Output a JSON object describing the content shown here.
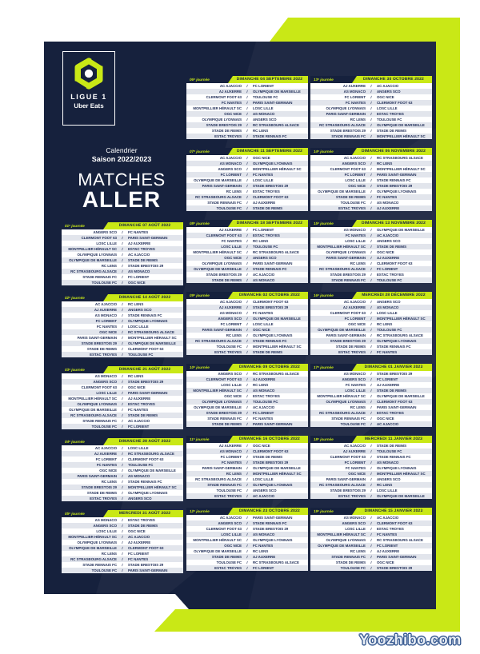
{
  "header": {
    "logo_league": "LIGUE 1",
    "logo_sponsor": "Uber Eats",
    "calendar_label": "Calendrier",
    "season_label": "Saison 2022/2023",
    "title_line1": "MATCHES",
    "title_line2": "ALLER"
  },
  "separator": "/",
  "footer": {
    "watermark": "Yoozhibo.com"
  },
  "colors": {
    "navy": "#16213d",
    "green": "#c9e816",
    "row_light": "#ffffff",
    "row_alt": "#e2e5ec",
    "row_text": "#1c2a55"
  },
  "journees": [
    {
      "label": "01ᵉ journée",
      "date": "DIMANCHE 07 AOÛT 2022",
      "col": 0,
      "matches": [
        [
          "ANGERS SCO",
          "FC NANTES"
        ],
        [
          "CLERMONT FOOT 63",
          "PARIS SAINT-GERMAIN"
        ],
        [
          "LOSC LILLE",
          "AJ AUXERRE"
        ],
        [
          "MONTPELLIER HÉRAULT SC",
          "ESTAC TROYES"
        ],
        [
          "OLYMPIQUE LYONNAIS",
          "AC AJACCIO"
        ],
        [
          "OLYMPIQUE DE MARSEILLE",
          "STADE DE REIMS"
        ],
        [
          "RC LENS",
          "STADE BRESTOIS 29"
        ],
        [
          "RC STRASBOURG ALSACE",
          "AS MONACO"
        ],
        [
          "STADE RENNAIS FC",
          "FC LORIENT"
        ],
        [
          "TOULOUSE FC",
          "OGC NICE"
        ]
      ]
    },
    {
      "label": "02ᵉ journée",
      "date": "DIMANCHE 14 AOÛT 2022",
      "col": 0,
      "matches": [
        [
          "AC AJACCIO",
          "RC LENS"
        ],
        [
          "AJ AUXERRE",
          "ANGERS SCO"
        ],
        [
          "AS MONACO",
          "STADE RENNAIS FC"
        ],
        [
          "FC LORIENT",
          "OLYMPIQUE LYONNAIS"
        ],
        [
          "FC NANTES",
          "LOSC LILLE"
        ],
        [
          "OGC NICE",
          "RC STRASBOURG ALSACE"
        ],
        [
          "PARIS SAINT-GERMAIN",
          "MONTPELLIER HÉRAULT SC"
        ],
        [
          "STADE BRESTOIS 29",
          "OLYMPIQUE DE MARSEILLE"
        ],
        [
          "STADE DE REIMS",
          "CLERMONT FOOT 63"
        ],
        [
          "ESTAC TROYES",
          "TOULOUSE FC"
        ]
      ]
    },
    {
      "label": "03ᵉ journée",
      "date": "DIMANCHE 21 AOÛT 2022",
      "col": 0,
      "matches": [
        [
          "AS MONACO",
          "RC LENS"
        ],
        [
          "ANGERS SCO",
          "STADE BRESTOIS 29"
        ],
        [
          "CLERMONT FOOT 63",
          "OGC NICE"
        ],
        [
          "LOSC LILLE",
          "PARIS SAINT-GERMAIN"
        ],
        [
          "MONTPELLIER HÉRAULT SC",
          "AJ AUXERRE"
        ],
        [
          "OLYMPIQUE LYONNAIS",
          "ESTAC TROYES"
        ],
        [
          "OLYMPIQUE DE MARSEILLE",
          "FC NANTES"
        ],
        [
          "RC STRASBOURG ALSACE",
          "STADE DE REIMS"
        ],
        [
          "STADE RENNAIS FC",
          "AC AJACCIO"
        ],
        [
          "TOULOUSE FC",
          "FC LORIENT"
        ]
      ]
    },
    {
      "label": "04ᵉ journée",
      "date": "DIMANCHE 28 AOÛT 2022",
      "col": 0,
      "matches": [
        [
          "AC AJACCIO",
          "LOSC LILLE"
        ],
        [
          "AJ AUXERRE",
          "RC STRASBOURG ALSACE"
        ],
        [
          "FC LORIENT",
          "CLERMONT FOOT 63"
        ],
        [
          "FC NANTES",
          "TOULOUSE FC"
        ],
        [
          "OGC NICE",
          "OLYMPIQUE DE MARSEILLE"
        ],
        [
          "PARIS SAINT-GERMAIN",
          "AS MONACO"
        ],
        [
          "RC LENS",
          "STADE RENNAIS FC"
        ],
        [
          "STADE BRESTOIS 29",
          "MONTPELLIER HÉRAULT SC"
        ],
        [
          "STADE DE REIMS",
          "OLYMPIQUE LYONNAIS"
        ],
        [
          "ESTAC TROYES",
          "ANGERS SCO"
        ]
      ]
    },
    {
      "label": "05ᵉ journée",
      "date": "MERCREDI 31 AOÛT 2022",
      "col": 0,
      "matches": [
        [
          "AS MONACO",
          "ESTAC TROYES"
        ],
        [
          "ANGERS SCO",
          "STADE DE REIMS"
        ],
        [
          "LOSC LILLE",
          "OGC NICE"
        ],
        [
          "MONTPELLIER HÉRAULT SC",
          "AC AJACCIO"
        ],
        [
          "OLYMPIQUE LYONNAIS",
          "AJ AUXERRE"
        ],
        [
          "OLYMPIQUE DE MARSEILLE",
          "CLERMONT FOOT 63"
        ],
        [
          "RC LENS",
          "FC LORIENT"
        ],
        [
          "RC STRASBOURG ALSACE",
          "FC NANTES"
        ],
        [
          "STADE RENNAIS FC",
          "STADE BRESTOIS 29"
        ],
        [
          "TOULOUSE FC",
          "PARIS SAINT-GERMAIN"
        ]
      ]
    },
    {
      "label": "06ᵉ journée",
      "date": "DIMANCHE 04 SEPTEMBRE 2022",
      "col": 1,
      "matches": [
        [
          "AC AJACCIO",
          "FC LORIENT"
        ],
        [
          "AJ AUXERRE",
          "OLYMPIQUE DE MARSEILLE"
        ],
        [
          "CLERMONT FOOT 63",
          "TOULOUSE FC"
        ],
        [
          "FC NANTES",
          "PARIS SAINT-GERMAIN"
        ],
        [
          "MONTPELLIER HÉRAULT SC",
          "LOSC LILLE"
        ],
        [
          "OGC NICE",
          "AS MONACO"
        ],
        [
          "OLYMPIQUE LYONNAIS",
          "ANGERS SCO"
        ],
        [
          "STADE BRESTOIS 29",
          "RC STRASBOURG ALSACE"
        ],
        [
          "STADE DE REIMS",
          "RC LENS"
        ],
        [
          "ESTAC TROYES",
          "STADE RENNAIS FC"
        ]
      ]
    },
    {
      "label": "07ᵉ journée",
      "date": "DIMANCHE 11 SEPTEMBRE 2022",
      "col": 1,
      "matches": [
        [
          "AC AJACCIO",
          "OGC NICE"
        ],
        [
          "AS MONACO",
          "OLYMPIQUE LYONNAIS"
        ],
        [
          "ANGERS SCO",
          "MONTPELLIER HÉRAULT SC"
        ],
        [
          "FC LORIENT",
          "FC NANTES"
        ],
        [
          "OLYMPIQUE DE MARSEILLE",
          "LOSC LILLE"
        ],
        [
          "PARIS SAINT-GERMAIN",
          "STADE BRESTOIS 29"
        ],
        [
          "RC LENS",
          "ESTAC TROYES"
        ],
        [
          "RC STRASBOURG ALSACE",
          "CLERMONT FOOT 63"
        ],
        [
          "STADE RENNAIS FC",
          "AJ AUXERRE"
        ],
        [
          "TOULOUSE FC",
          "STADE DE REIMS"
        ]
      ]
    },
    {
      "label": "08ᵉ journée",
      "date": "DIMANCHE 18 SEPTEMBRE 2022",
      "col": 1,
      "matches": [
        [
          "AJ AUXERRE",
          "FC LORIENT"
        ],
        [
          "CLERMONT FOOT 63",
          "ESTAC TROYES"
        ],
        [
          "FC NANTES",
          "RC LENS"
        ],
        [
          "LOSC LILLE",
          "TOULOUSE FC"
        ],
        [
          "MONTPELLIER HÉRAULT SC",
          "RC STRASBOURG ALSACE"
        ],
        [
          "OGC NICE",
          "ANGERS SCO"
        ],
        [
          "OLYMPIQUE LYONNAIS",
          "PARIS SAINT-GERMAIN"
        ],
        [
          "OLYMPIQUE DE MARSEILLE",
          "STADE RENNAIS FC"
        ],
        [
          "STADE BRESTOIS 29",
          "AC AJACCIO"
        ],
        [
          "STADE DE REIMS",
          "AS MONACO"
        ]
      ]
    },
    {
      "label": "09ᵉ journée",
      "date": "DIMANCHE 02 OCTOBRE 2022",
      "col": 1,
      "matches": [
        [
          "AC AJACCIO",
          "CLERMONT FOOT 63"
        ],
        [
          "AJ AUXERRE",
          "STADE BRESTOIS 29"
        ],
        [
          "AS MONACO",
          "FC NANTES"
        ],
        [
          "ANGERS SCO",
          "OLYMPIQUE DE MARSEILLE"
        ],
        [
          "FC LORIENT",
          "LOSC LILLE"
        ],
        [
          "PARIS SAINT-GERMAIN",
          "OGC NICE"
        ],
        [
          "RC LENS",
          "OLYMPIQUE LYONNAIS"
        ],
        [
          "RC STRASBOURG ALSACE",
          "STADE RENNAIS FC"
        ],
        [
          "TOULOUSE FC",
          "MONTPELLIER HÉRAULT SC"
        ],
        [
          "ESTAC TROYES",
          "STADE DE REIMS"
        ]
      ]
    },
    {
      "label": "10ᵉ journée",
      "date": "DIMANCHE 09 OCTOBRE 2022",
      "col": 1,
      "matches": [
        [
          "ANGERS SCO",
          "RC STRASBOURG ALSACE"
        ],
        [
          "CLERMONT FOOT 63",
          "AJ AUXERRE"
        ],
        [
          "LOSC LILLE",
          "RC LENS"
        ],
        [
          "MONTPELLIER HÉRAULT SC",
          "AS MONACO"
        ],
        [
          "OGC NICE",
          "ESTAC TROYES"
        ],
        [
          "OLYMPIQUE LYONNAIS",
          "TOULOUSE FC"
        ],
        [
          "OLYMPIQUE DE MARSEILLE",
          "AC AJACCIO"
        ],
        [
          "STADE BRESTOIS 29",
          "FC LORIENT"
        ],
        [
          "STADE RENNAIS FC",
          "FC NANTES"
        ],
        [
          "STADE DE REIMS",
          "PARIS SAINT-GERMAIN"
        ]
      ]
    },
    {
      "label": "11ᵉ journée",
      "date": "DIMANCHE 16 OCTOBRE 2022",
      "col": 1,
      "matches": [
        [
          "AJ AUXERRE",
          "OGC NICE"
        ],
        [
          "AS MONACO",
          "CLERMONT FOOT 63"
        ],
        [
          "FC LORIENT",
          "STADE DE REIMS"
        ],
        [
          "FC NANTES",
          "STADE BRESTOIS 29"
        ],
        [
          "PARIS SAINT-GERMAIN",
          "OLYMPIQUE DE MARSEILLE"
        ],
        [
          "RC LENS",
          "MONTPELLIER HÉRAULT SC"
        ],
        [
          "RC STRASBOURG ALSACE",
          "LOSC LILLE"
        ],
        [
          "STADE RENNAIS FC",
          "OLYMPIQUE LYONNAIS"
        ],
        [
          "TOULOUSE FC",
          "ANGERS SCO"
        ],
        [
          "ESTAC TROYES",
          "AC AJACCIO"
        ]
      ]
    },
    {
      "label": "12ᵉ journée",
      "date": "DIMANCHE 23 OCTOBRE 2022",
      "col": 1,
      "matches": [
        [
          "AC AJACCIO",
          "PARIS SAINT-GERMAIN"
        ],
        [
          "ANGERS SCO",
          "STADE RENNAIS FC"
        ],
        [
          "CLERMONT FOOT 63",
          "STADE BRESTOIS 29"
        ],
        [
          "LOSC LILLE",
          "AS MONACO"
        ],
        [
          "MONTPELLIER HÉRAULT SC",
          "OLYMPIQUE LYONNAIS"
        ],
        [
          "OGC NICE",
          "FC NANTES"
        ],
        [
          "OLYMPIQUE DE MARSEILLE",
          "RC LENS"
        ],
        [
          "STADE DE REIMS",
          "AJ AUXERRE"
        ],
        [
          "TOULOUSE FC",
          "RC STRASBOURG ALSACE"
        ],
        [
          "ESTAC TROYES",
          "FC LORIENT"
        ]
      ]
    },
    {
      "label": "13ᵉ journée",
      "date": "DIMANCHE 30 OCTOBRE 2022",
      "col": 2,
      "matches": [
        [
          "AJ AUXERRE",
          "AC AJACCIO"
        ],
        [
          "AS MONACO",
          "ANGERS SCO"
        ],
        [
          "FC LORIENT",
          "OGC NICE"
        ],
        [
          "FC NANTES",
          "CLERMONT FOOT 63"
        ],
        [
          "OLYMPIQUE LYONNAIS",
          "LOSC LILLE"
        ],
        [
          "PARIS SAINT-GERMAIN",
          "ESTAC TROYES"
        ],
        [
          "RC LENS",
          "TOULOUSE FC"
        ],
        [
          "RC STRASBOURG ALSACE",
          "OLYMPIQUE DE MARSEILLE"
        ],
        [
          "STADE BRESTOIS 29",
          "STADE DE REIMS"
        ],
        [
          "STADE RENNAIS FC",
          "MONTPELLIER HÉRAULT SC"
        ]
      ]
    },
    {
      "label": "14ᵉ journée",
      "date": "DIMANCHE 06 NOVEMBRE 2022",
      "col": 2,
      "matches": [
        [
          "AC AJACCIO",
          "RC STRASBOURG ALSACE"
        ],
        [
          "ANGERS SCO",
          "RC LENS"
        ],
        [
          "CLERMONT FOOT 63",
          "MONTPELLIER HÉRAULT SC"
        ],
        [
          "FC LORIENT",
          "PARIS SAINT-GERMAIN"
        ],
        [
          "LOSC LILLE",
          "STADE RENNAIS FC"
        ],
        [
          "OGC NICE",
          "STADE BRESTOIS 29"
        ],
        [
          "OLYMPIQUE DE MARSEILLE",
          "OLYMPIQUE LYONNAIS"
        ],
        [
          "STADE DE REIMS",
          "FC NANTES"
        ],
        [
          "TOULOUSE FC",
          "AS MONACO"
        ],
        [
          "ESTAC TROYES",
          "AJ AUXERRE"
        ]
      ]
    },
    {
      "label": "15ᵉ journée",
      "date": "DIMANCHE 13 NOVEMBRE 2022",
      "col": 2,
      "matches": [
        [
          "AS MONACO",
          "OLYMPIQUE DE MARSEILLE"
        ],
        [
          "FC NANTES",
          "AC AJACCIO"
        ],
        [
          "LOSC LILLE",
          "ANGERS SCO"
        ],
        [
          "MONTPELLIER HÉRAULT SC",
          "STADE DE REIMS"
        ],
        [
          "OLYMPIQUE LYONNAIS",
          "OGC NICE"
        ],
        [
          "PARIS SAINT-GERMAIN",
          "AJ AUXERRE"
        ],
        [
          "RC LENS",
          "CLERMONT FOOT 63"
        ],
        [
          "RC STRASBOURG ALSACE",
          "FC LORIENT"
        ],
        [
          "STADE BRESTOIS 29",
          "ESTAC TROYES"
        ],
        [
          "STADE RENNAIS FC",
          "TOULOUSE FC"
        ]
      ]
    },
    {
      "label": "16ᵉ journée",
      "date": "MERCREDI 28 DÉCEMBRE 2022",
      "col": 2,
      "matches": [
        [
          "AC AJACCIO",
          "ANGERS SCO"
        ],
        [
          "AJ AUXERRE",
          "AS MONACO"
        ],
        [
          "CLERMONT FOOT 63",
          "LOSC LILLE"
        ],
        [
          "FC LORIENT",
          "MONTPELLIER HÉRAULT SC"
        ],
        [
          "OGC NICE",
          "RC LENS"
        ],
        [
          "OLYMPIQUE DE MARSEILLE",
          "TOULOUSE FC"
        ],
        [
          "PARIS SAINT-GERMAIN",
          "RC STRASBOURG ALSACE"
        ],
        [
          "STADE BRESTOIS 29",
          "OLYMPIQUE LYONNAIS"
        ],
        [
          "STADE DE REIMS",
          "STADE RENNAIS FC"
        ],
        [
          "ESTAC TROYES",
          "FC NANTES"
        ]
      ]
    },
    {
      "label": "17ᵉ journée",
      "date": "DIMANCHE 01 JANVIER 2023",
      "col": 2,
      "matches": [
        [
          "AS MONACO",
          "STADE BRESTOIS 29"
        ],
        [
          "ANGERS SCO",
          "FC LORIENT"
        ],
        [
          "FC NANTES",
          "AJ AUXERRE"
        ],
        [
          "LOSC LILLE",
          "STADE DE REIMS"
        ],
        [
          "MONTPELLIER HÉRAULT SC",
          "OLYMPIQUE DE MARSEILLE"
        ],
        [
          "OLYMPIQUE LYONNAIS",
          "CLERMONT FOOT 63"
        ],
        [
          "RC LENS",
          "PARIS SAINT-GERMAIN"
        ],
        [
          "RC STRASBOURG ALSACE",
          "ESTAC TROYES"
        ],
        [
          "STADE RENNAIS FC",
          "OGC NICE"
        ],
        [
          "TOULOUSE FC",
          "AC AJACCIO"
        ]
      ]
    },
    {
      "label": "18ᵉ journée",
      "date": "MERCREDI 11 JANVIER 2023",
      "col": 2,
      "matches": [
        [
          "AC AJACCIO",
          "STADE DE REIMS"
        ],
        [
          "AJ AUXERRE",
          "TOULOUSE FC"
        ],
        [
          "CLERMONT FOOT 63",
          "STADE RENNAIS FC"
        ],
        [
          "FC LORIENT",
          "AS MONACO"
        ],
        [
          "FC NANTES",
          "OLYMPIQUE LYONNAIS"
        ],
        [
          "OGC NICE",
          "MONTPELLIER HÉRAULT SC"
        ],
        [
          "PARIS SAINT-GERMAIN",
          "ANGERS SCO"
        ],
        [
          "RC STRASBOURG ALSACE",
          "RC LENS"
        ],
        [
          "STADE BRESTOIS 29",
          "LOSC LILLE"
        ],
        [
          "ESTAC TROYES",
          "OLYMPIQUE DE MARSEILLE"
        ]
      ]
    },
    {
      "label": "19ᵉ journée",
      "date": "DIMANCHE 15 JANVIER 2023",
      "col": 2,
      "matches": [
        [
          "AS MONACO",
          "AC AJACCIO"
        ],
        [
          "ANGERS SCO",
          "CLERMONT FOOT 63"
        ],
        [
          "LOSC LILLE",
          "ESTAC TROYES"
        ],
        [
          "MONTPELLIER HÉRAULT SC",
          "FC NANTES"
        ],
        [
          "OLYMPIQUE LYONNAIS",
          "RC STRASBOURG ALSACE"
        ],
        [
          "OLYMPIQUE DE MARSEILLE",
          "FC LORIENT"
        ],
        [
          "RC LENS",
          "AJ AUXERRE"
        ],
        [
          "STADE RENNAIS FC",
          "PARIS SAINT-GERMAIN"
        ],
        [
          "STADE DE REIMS",
          "OGC NICE"
        ],
        [
          "TOULOUSE FC",
          "STADE BRESTOIS 29"
        ]
      ]
    }
  ]
}
